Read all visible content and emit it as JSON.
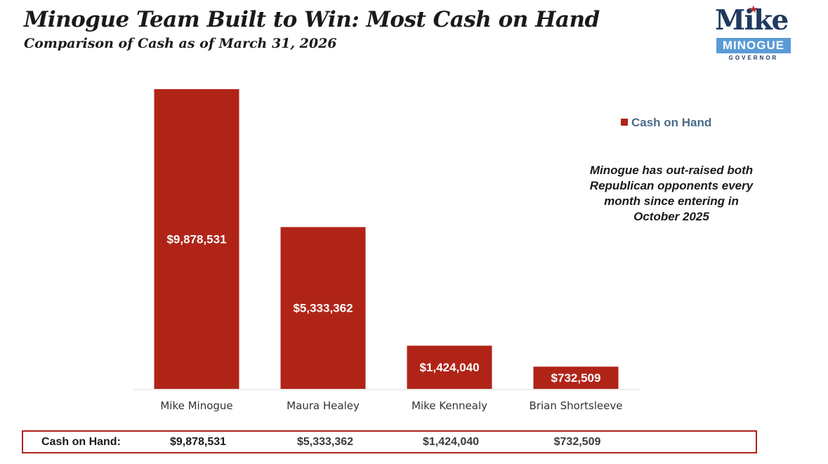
{
  "title": "Minogue Team Built to Win: Most Cash on Hand",
  "subtitle": "Comparison of Cash as of March 31, 2026",
  "logo": {
    "name": "Mike",
    "surname": "MINOGUE",
    "office": "GOVERNOR"
  },
  "legend_label": "Cash on Hand",
  "note": "Minogue has out-raised both Republican opponents every month since entering in October 2025",
  "colors": {
    "bar": "#b02418",
    "axis": "#d9d9d9",
    "legend_text": "#4a6d8c",
    "logo_navy": "#1f3a5f",
    "logo_blue": "#5b9bd5"
  },
  "table": {
    "row_label": "Cash on Hand:",
    "values": [
      "$9,878,531",
      "$5,333,362",
      "$1,424,040",
      "$732,509"
    ]
  },
  "chart_data": {
    "type": "bar",
    "title": "Minogue Team Built to Win: Most Cash on Hand",
    "subtitle": "Comparison of Cash as of March 31, 2026",
    "categories": [
      "Mike Minogue",
      "Maura Healey",
      "Mike Kennealy",
      "Brian Shortsleeve"
    ],
    "series": [
      {
        "name": "Cash on Hand",
        "values": [
          9878531,
          5333362,
          1424040,
          732509
        ]
      }
    ],
    "data_labels": [
      "$9,878,531",
      "$5,333,362",
      "$1,424,040",
      "$732,509"
    ],
    "xlabel": "",
    "ylabel": "",
    "ylim": [
      0,
      10000000
    ],
    "grid": false,
    "legend": "right"
  }
}
